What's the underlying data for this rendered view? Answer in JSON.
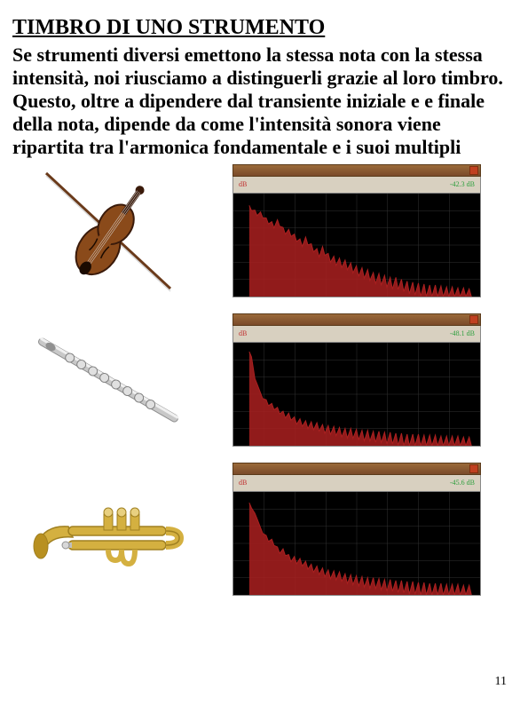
{
  "title": "TIMBRO DI UNO STRUMENTO",
  "body": "Se strumenti diversi emettono la stessa nota con la stessa intensità, noi riusciamo a distinguerli grazie al loro timbro. Questo, oltre a dipendere dal transiente iniziale e e finale della nota, dipende da come l'intensità sonora viene ripartita tra l'armonica fondamentale e i suoi multipli",
  "page_number": "11",
  "instruments": [
    {
      "name": "violin",
      "label": "Violino",
      "color_body": "#8a4a1a",
      "color_detail": "#3a1a0a"
    },
    {
      "name": "flute",
      "label": "Flauto",
      "color_body": "#c8c8c8",
      "color_detail": "#909090"
    },
    {
      "name": "trumpet",
      "label": "Tromba",
      "color_body": "#d4b040",
      "color_detail": "#a08020"
    }
  ],
  "spectra": [
    {
      "title_left": "dB",
      "title_right": "-42.3 dB",
      "plot_bg": "#000000",
      "line_color": "#aa2020",
      "grid_color": "#333333",
      "peaks": [
        95,
        90,
        88,
        82,
        78,
        80,
        72,
        70,
        65,
        60,
        62,
        55,
        50,
        52,
        45,
        42,
        40,
        38,
        35,
        32,
        30,
        28,
        25,
        24,
        22,
        20,
        20,
        18,
        16,
        15,
        14,
        13,
        12,
        12,
        11,
        10,
        10,
        9,
        9,
        8
      ]
    },
    {
      "title_left": "dB",
      "title_right": "-48.1 dB",
      "plot_bg": "#000000",
      "line_color": "#aa2020",
      "grid_color": "#333333",
      "peaks": [
        98,
        70,
        55,
        48,
        44,
        40,
        36,
        34,
        30,
        28,
        26,
        25,
        24,
        22,
        21,
        20,
        19,
        18,
        18,
        17,
        16,
        16,
        15,
        15,
        14,
        14,
        13,
        13,
        12,
        12,
        12,
        11,
        11,
        11,
        10,
        10,
        10,
        10,
        9,
        9
      ]
    },
    {
      "title_left": "dB",
      "title_right": "-45.6 dB",
      "plot_bg": "#000000",
      "line_color": "#aa2020",
      "grid_color": "#333333",
      "peaks": [
        96,
        85,
        70,
        62,
        58,
        50,
        48,
        42,
        40,
        38,
        35,
        32,
        30,
        28,
        26,
        25,
        24,
        22,
        21,
        20,
        19,
        18,
        18,
        17,
        16,
        16,
        15,
        15,
        14,
        14,
        13,
        13,
        12,
        12,
        12,
        11,
        11,
        11,
        10,
        10
      ]
    }
  ],
  "styling": {
    "page_bg": "#ffffff",
    "text_color": "#000000",
    "title_fontsize": 24,
    "body_fontsize": 22,
    "font_family": "Times New Roman",
    "spectrum_titlebar_gradient": [
      "#9a6a3a",
      "#7a4a2a"
    ],
    "spectrum_header_bg": "#d8d0c0",
    "spectrum_close_btn": "#c04020"
  }
}
